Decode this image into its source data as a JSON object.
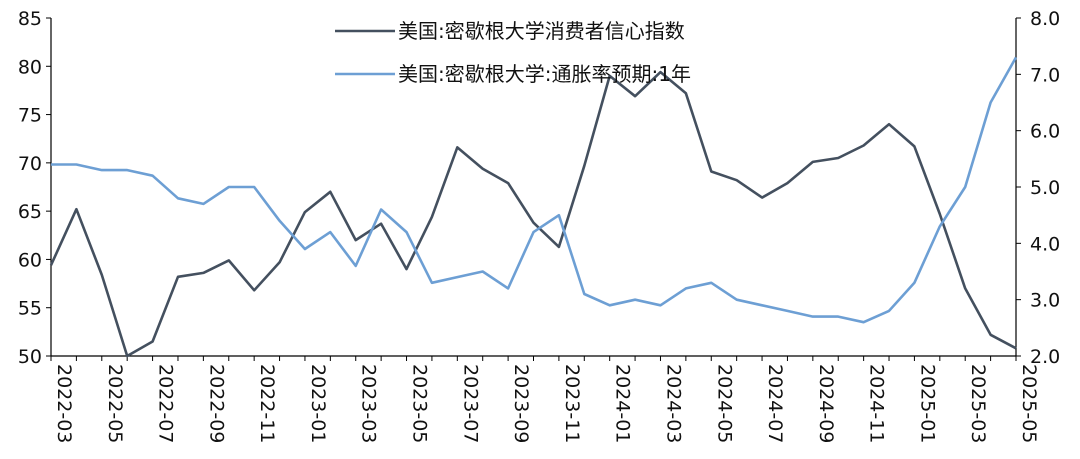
{
  "chart_data": {
    "type": "line",
    "title": "",
    "xlabel": "",
    "ylabel": "",
    "x": [
      "2022-03",
      "2022-04",
      "2022-05",
      "2022-06",
      "2022-07",
      "2022-08",
      "2022-09",
      "2022-10",
      "2022-11",
      "2022-12",
      "2023-01",
      "2023-02",
      "2023-03",
      "2023-04",
      "2023-05",
      "2023-06",
      "2023-07",
      "2023-08",
      "2023-09",
      "2023-10",
      "2023-11",
      "2023-12",
      "2024-01",
      "2024-02",
      "2024-03",
      "2024-04",
      "2024-05",
      "2024-06",
      "2024-07",
      "2024-08",
      "2024-09",
      "2024-10",
      "2024-11",
      "2024-12",
      "2025-01",
      "2025-02",
      "2025-03",
      "2025-04",
      "2025-05"
    ],
    "x_tick_labels": [
      "2022-03",
      "2022-05",
      "2022-07",
      "2022-09",
      "2022-11",
      "2023-01",
      "2023-03",
      "2023-05",
      "2023-07",
      "2023-09",
      "2023-11",
      "2024-01",
      "2024-03",
      "2024-05",
      "2024-07",
      "2024-09",
      "2024-11",
      "2025-01",
      "2025-03",
      "2025-05"
    ],
    "left_axis": {
      "ylim": [
        50,
        85
      ],
      "ticks": [
        "50",
        "55",
        "60",
        "65",
        "70",
        "75",
        "80",
        "85"
      ]
    },
    "right_axis": {
      "ylim": [
        2.0,
        8.0
      ],
      "ticks": [
        "2.0",
        "3.0",
        "4.0",
        "5.0",
        "6.0",
        "7.0",
        "8.0"
      ]
    },
    "legend_position": "top-center",
    "series": [
      {
        "name": "美国:密歇根大学消费者信心指数",
        "axis": "left",
        "color": "#44505f",
        "values": [
          59.4,
          65.2,
          58.4,
          50.0,
          51.5,
          58.2,
          58.6,
          59.9,
          56.8,
          59.7,
          64.9,
          67.0,
          62.0,
          63.7,
          59.0,
          64.4,
          71.6,
          69.4,
          67.9,
          63.8,
          61.3,
          69.7,
          79.0,
          76.9,
          79.4,
          77.2,
          69.1,
          68.2,
          66.4,
          67.9,
          70.1,
          70.5,
          71.8,
          74.0,
          71.7,
          64.7,
          57.0,
          52.2,
          50.8
        ]
      },
      {
        "name": "美国:密歇根大学:通胀率预期:1年",
        "axis": "right",
        "color": "#6d9fd4",
        "values": [
          5.4,
          5.4,
          5.3,
          5.3,
          5.2,
          4.8,
          4.7,
          5.0,
          5.0,
          4.4,
          3.9,
          4.2,
          3.6,
          4.6,
          4.2,
          3.3,
          3.4,
          3.5,
          3.2,
          4.2,
          4.5,
          3.1,
          2.9,
          3.0,
          2.9,
          3.2,
          3.3,
          3.0,
          2.9,
          2.8,
          2.7,
          2.7,
          2.6,
          2.8,
          3.3,
          4.3,
          5.0,
          6.5,
          7.3
        ]
      }
    ]
  }
}
